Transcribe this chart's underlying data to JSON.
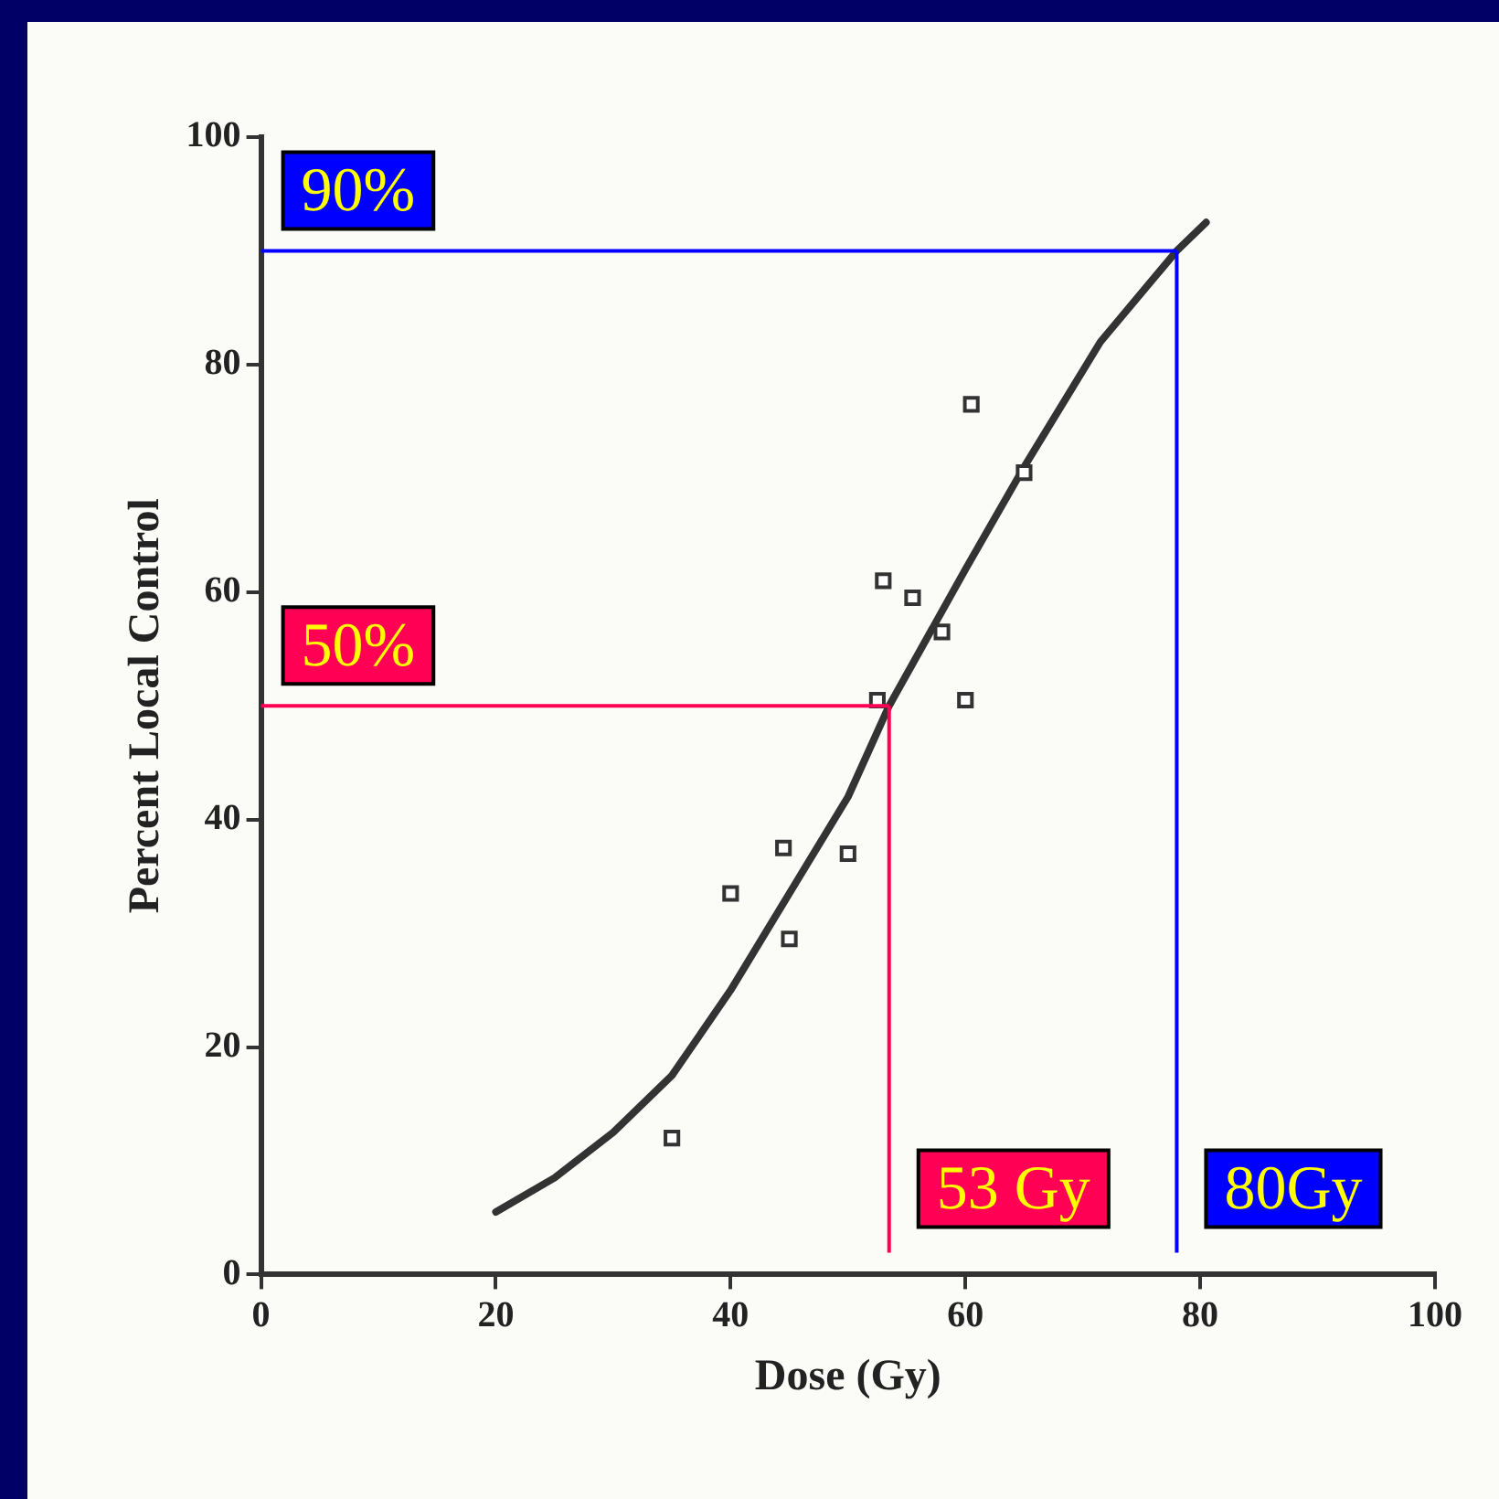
{
  "chart_data": {
    "type": "scatter",
    "xlabel": "Dose (Gy)",
    "ylabel": "Percent Local Control",
    "xlim": [
      0,
      100
    ],
    "xticks": [
      0,
      20,
      40,
      60,
      80,
      100
    ],
    "ylim": [
      0,
      100
    ],
    "yticks": [
      0,
      20,
      40,
      60,
      80,
      100
    ],
    "grid": false,
    "legend": false,
    "marker": "square",
    "series": [
      {
        "type": "scatter",
        "color": "#333333",
        "x": [
          35,
          40,
          44.5,
          45,
          50,
          52.5,
          53,
          55.5,
          58,
          60,
          60.5,
          65
        ],
        "values": [
          12,
          33.5,
          37.5,
          29.5,
          37,
          50.5,
          61,
          59.5,
          56.5,
          50.5,
          76.5,
          70.5
        ]
      },
      {
        "type": "line",
        "color": "#333333",
        "marker": "none",
        "x": [
          20,
          25,
          30,
          35,
          40,
          45,
          50,
          53.5,
          60,
          65,
          71.5,
          78,
          80.5
        ],
        "values": [
          5.5,
          8.5,
          12.5,
          17.5,
          25,
          33.5,
          42,
          50,
          62,
          71,
          82,
          90,
          92.5
        ]
      }
    ],
    "ref_lines": [
      {
        "axis": "y",
        "value": 90,
        "label": "90%",
        "color": "#0000ff"
      },
      {
        "axis": "x",
        "value": 78,
        "label": "80Gy",
        "color": "#0000ff"
      },
      {
        "axis": "y",
        "value": 50,
        "label": "50%",
        "color": "#ff0055"
      },
      {
        "axis": "x",
        "value": 53.5,
        "label": "53 Gy",
        "color": "#ff0055"
      }
    ]
  }
}
